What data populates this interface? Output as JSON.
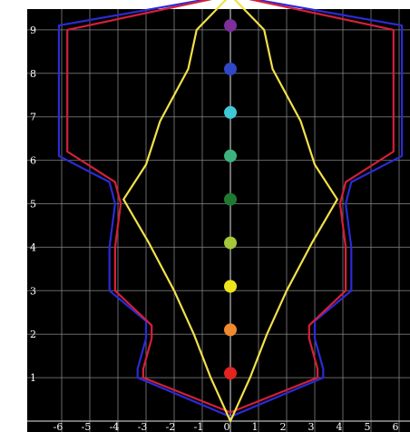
{
  "chart_data": {
    "type": "line",
    "title": "",
    "xlabel": "",
    "ylabel": "",
    "xlim": [
      -6.3,
      6.3
    ],
    "ylim": [
      0,
      9.8
    ],
    "grid": true,
    "background": "#000000",
    "grid_color": "#8a8a8a",
    "x_ticks": [
      "-6",
      "-5",
      "-4",
      "-3",
      "-2",
      "-1",
      "0",
      "1",
      "2",
      "3",
      "4",
      "5",
      "6"
    ],
    "y_ticks": [
      "1",
      "2",
      "3",
      "4",
      "5",
      "6",
      "7",
      "8",
      "9"
    ],
    "series": [
      {
        "color": "#2b2bd6",
        "points": [
          [
            0,
            9.8
          ],
          [
            -6.1,
            9.1
          ],
          [
            -6.1,
            6.1
          ],
          [
            -4.3,
            5.5
          ],
          [
            -4.1,
            5.0
          ],
          [
            -4.3,
            4.0
          ],
          [
            -4.3,
            3.0
          ],
          [
            -3.0,
            2.3
          ],
          [
            -3.0,
            1.9
          ],
          [
            -3.3,
            1.2
          ],
          [
            -3.3,
            1.0
          ],
          [
            0,
            0.1
          ],
          [
            3.3,
            1.0
          ],
          [
            3.3,
            1.2
          ],
          [
            3.0,
            1.9
          ],
          [
            3.0,
            2.3
          ],
          [
            4.3,
            3.0
          ],
          [
            4.3,
            4.0
          ],
          [
            4.1,
            5.0
          ],
          [
            4.3,
            5.5
          ],
          [
            6.1,
            6.1
          ],
          [
            6.1,
            9.1
          ],
          [
            0,
            9.8
          ]
        ]
      },
      {
        "color": "#d4203a",
        "points": [
          [
            0,
            9.8
          ],
          [
            -5.8,
            9.0
          ],
          [
            -5.8,
            6.2
          ],
          [
            -4.1,
            5.5
          ],
          [
            -3.9,
            5.0
          ],
          [
            -4.1,
            4.0
          ],
          [
            -4.1,
            3.0
          ],
          [
            -2.8,
            2.2
          ],
          [
            -2.8,
            1.9
          ],
          [
            -3.1,
            1.2
          ],
          [
            -3.1,
            1.0
          ],
          [
            0,
            0.2
          ],
          [
            3.1,
            1.0
          ],
          [
            3.1,
            1.2
          ],
          [
            2.8,
            1.9
          ],
          [
            2.8,
            2.2
          ],
          [
            4.1,
            3.0
          ],
          [
            4.1,
            4.0
          ],
          [
            3.9,
            5.0
          ],
          [
            4.1,
            5.5
          ],
          [
            5.8,
            6.2
          ],
          [
            5.8,
            9.0
          ],
          [
            0,
            9.8
          ]
        ]
      },
      {
        "color": "#f1e14a",
        "points": [
          [
            0,
            9.8
          ],
          [
            -1.2,
            9.0
          ],
          [
            -1.5,
            8.1
          ],
          [
            -2.5,
            6.9
          ],
          [
            -3.0,
            5.9
          ],
          [
            -3.8,
            5.1
          ],
          [
            -2.9,
            4.1
          ],
          [
            -2.0,
            3.0
          ],
          [
            -1.3,
            2.0
          ],
          [
            -0.7,
            1.0
          ],
          [
            0,
            0
          ],
          [
            0.7,
            1.0
          ],
          [
            1.3,
            2.0
          ],
          [
            2.0,
            3.0
          ],
          [
            2.9,
            4.1
          ],
          [
            3.8,
            5.1
          ],
          [
            3.0,
            5.9
          ],
          [
            2.5,
            6.9
          ],
          [
            1.5,
            8.1
          ],
          [
            1.2,
            9.0
          ],
          [
            0,
            9.8
          ]
        ]
      }
    ],
    "markers": [
      {
        "x": 0,
        "y": 1.1,
        "color": "#e3231f"
      },
      {
        "x": 0,
        "y": 2.1,
        "color": "#f08a2c"
      },
      {
        "x": 0,
        "y": 3.1,
        "color": "#eee41b"
      },
      {
        "x": 0,
        "y": 4.1,
        "color": "#a5c83a"
      },
      {
        "x": 0,
        "y": 5.1,
        "color": "#1f7a30"
      },
      {
        "x": 0,
        "y": 6.1,
        "color": "#3db27e"
      },
      {
        "x": 0,
        "y": 7.1,
        "color": "#3fc9d6"
      },
      {
        "x": 0,
        "y": 8.1,
        "color": "#2f47c8"
      },
      {
        "x": 0,
        "y": 9.1,
        "color": "#7d2f9c"
      }
    ]
  }
}
